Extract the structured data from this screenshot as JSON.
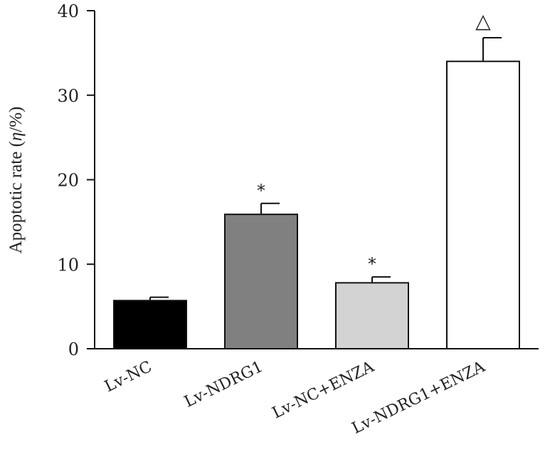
{
  "chart_data": {
    "type": "bar",
    "title": "",
    "xlabel": "",
    "ylabel": "Apoptotic rate (",
    "ylabel_symbol": "η",
    "ylabel_unit": "/%)",
    "ylim": [
      0,
      40
    ],
    "yticks": [
      "0",
      "10",
      "20",
      "30",
      "40"
    ],
    "grid": false,
    "categories": [
      "Lv-NC",
      "Lv-NDRG1",
      "Lv-NC+ENZA",
      "Lv-NDRG1+ENZA"
    ],
    "values": [
      5.7,
      15.9,
      7.8,
      34.0
    ],
    "errors": [
      0.4,
      1.3,
      0.7,
      2.8
    ],
    "bar_colors": [
      "#000000",
      "#808080",
      "#d3d3d3",
      "#ffffff"
    ],
    "annotations": [
      "",
      "*",
      "*",
      "△"
    ]
  }
}
